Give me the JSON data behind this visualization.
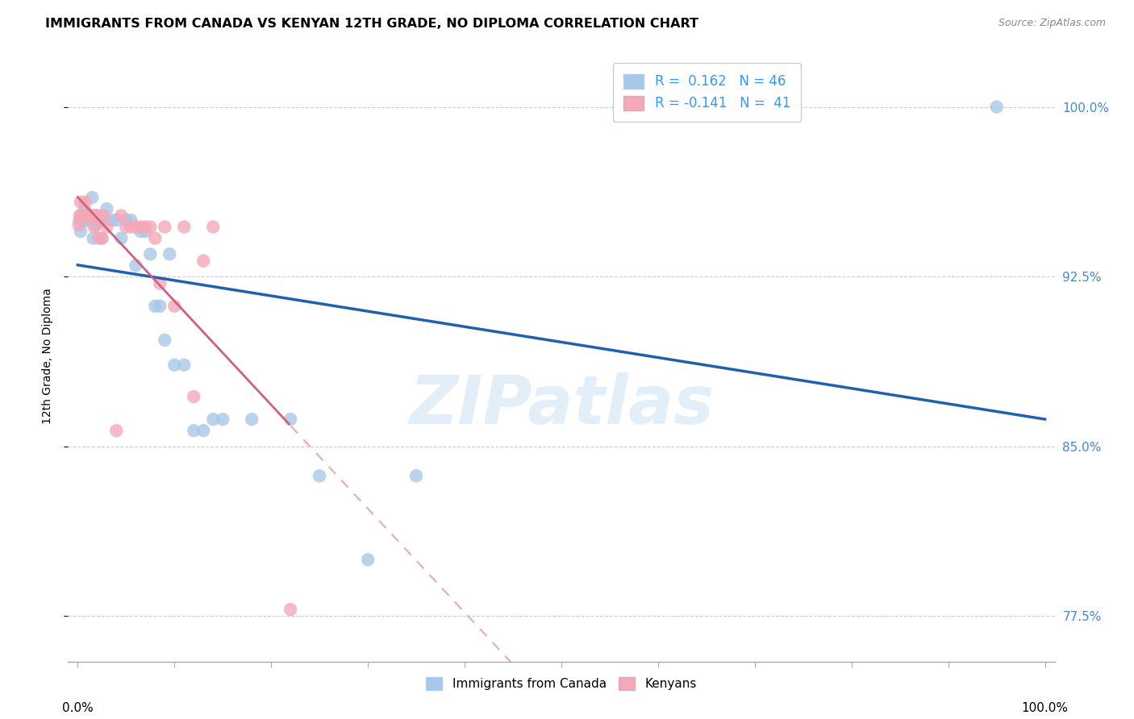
{
  "title": "IMMIGRANTS FROM CANADA VS KENYAN 12TH GRADE, NO DIPLOMA CORRELATION CHART",
  "source": "Source: ZipAtlas.com",
  "ylabel": "12th Grade, No Diploma",
  "legend_canada": "Immigrants from Canada",
  "legend_kenya": "Kenyans",
  "R_canada": 0.162,
  "N_canada": 46,
  "R_kenya": -0.141,
  "N_kenya": 41,
  "ytick_vals": [
    0.775,
    0.85,
    0.925,
    1.0
  ],
  "ytick_labels": [
    "77.5%",
    "85.0%",
    "92.5%",
    "100.0%"
  ],
  "color_canada": "#a8c8e8",
  "color_kenya": "#f4a8b8",
  "color_canada_line": "#2060b0",
  "color_kenya_solid": "#d06080",
  "color_kenya_dash": "#e8a8b8",
  "watermark_color": "#d0e4f4",
  "canada_x": [
    0.002,
    0.003,
    0.004,
    0.005,
    0.006,
    0.007,
    0.008,
    0.009,
    0.01,
    0.011,
    0.013,
    0.015,
    0.016,
    0.017,
    0.018,
    0.019,
    0.02,
    0.022,
    0.025,
    0.027,
    0.03,
    0.035,
    0.04,
    0.045,
    0.05,
    0.055,
    0.06,
    0.065,
    0.07,
    0.075,
    0.08,
    0.085,
    0.09,
    0.095,
    0.1,
    0.11,
    0.12,
    0.13,
    0.14,
    0.15,
    0.18,
    0.22,
    0.25,
    0.3,
    0.35,
    0.95
  ],
  "canada_y": [
    0.95,
    0.945,
    0.95,
    0.95,
    0.95,
    0.955,
    0.95,
    0.95,
    0.95,
    0.95,
    0.95,
    0.96,
    0.942,
    0.95,
    0.948,
    0.948,
    0.95,
    0.95,
    0.942,
    0.95,
    0.955,
    0.95,
    0.95,
    0.942,
    0.95,
    0.95,
    0.93,
    0.945,
    0.945,
    0.935,
    0.912,
    0.912,
    0.897,
    0.935,
    0.886,
    0.886,
    0.857,
    0.857,
    0.862,
    0.862,
    0.862,
    0.862,
    0.837,
    0.8,
    0.837,
    1.0
  ],
  "kenya_x": [
    0.001,
    0.002,
    0.003,
    0.004,
    0.005,
    0.006,
    0.007,
    0.008,
    0.009,
    0.01,
    0.011,
    0.012,
    0.013,
    0.014,
    0.015,
    0.016,
    0.017,
    0.018,
    0.019,
    0.02,
    0.022,
    0.025,
    0.027,
    0.03,
    0.04,
    0.045,
    0.05,
    0.055,
    0.06,
    0.065,
    0.07,
    0.075,
    0.08,
    0.085,
    0.09,
    0.1,
    0.11,
    0.12,
    0.13,
    0.14,
    0.22
  ],
  "kenya_y": [
    0.948,
    0.952,
    0.958,
    0.952,
    0.952,
    0.952,
    0.952,
    0.958,
    0.952,
    0.952,
    0.952,
    0.952,
    0.952,
    0.952,
    0.952,
    0.952,
    0.947,
    0.952,
    0.952,
    0.952,
    0.942,
    0.942,
    0.952,
    0.947,
    0.857,
    0.952,
    0.947,
    0.947,
    0.947,
    0.947,
    0.947,
    0.947,
    0.942,
    0.922,
    0.947,
    0.912,
    0.947,
    0.872,
    0.932,
    0.947,
    0.778
  ]
}
